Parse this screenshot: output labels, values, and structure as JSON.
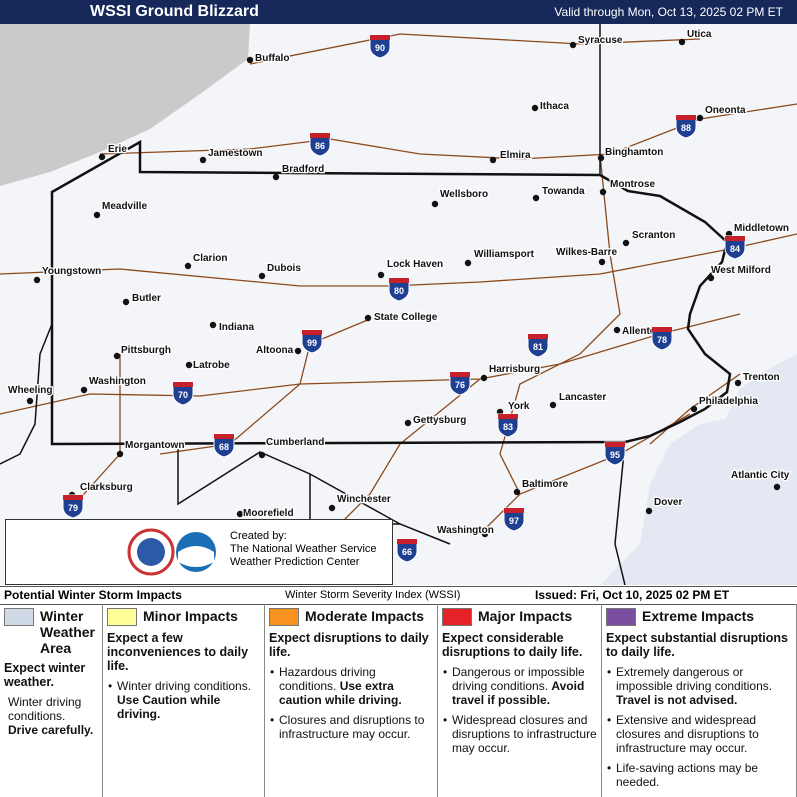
{
  "header": {
    "title": "WSSI Ground Blizzard",
    "valid": "Valid through Mon, Oct 13, 2025 02 PM ET"
  },
  "cities": [
    "Buffalo",
    "Syracuse",
    "Utica",
    "Ithaca",
    "Oneonta",
    "Erie",
    "Jamestown",
    "Bradford",
    "Elmira",
    "Binghamton",
    "Montrose",
    "Towanda",
    "Wellsboro",
    "Meadville",
    "Middletown",
    "Scranton",
    "Wilkes-Barre",
    "Williamsport",
    "Lock Haven",
    "Clarion",
    "Dubois",
    "Youngstown",
    "West Milford",
    "Butler",
    "State College",
    "Indiana",
    "Allentown",
    "Pittsburgh",
    "Altoona",
    "Latrobe",
    "Harrisburg",
    "Trenton",
    "Washington",
    "Lancaster",
    "Philadelphia",
    "York",
    "Gettysburg",
    "Morgantown",
    "Cumberland",
    "Atlantic City",
    "Clarksburg",
    "Baltimore",
    "Winchester",
    "Dover",
    "Moorefield",
    "Washington",
    "Wheeling"
  ],
  "interstates": [
    "90",
    "86",
    "88",
    "84",
    "80",
    "81",
    "78",
    "99",
    "76",
    "70",
    "83",
    "68",
    "95",
    "79",
    "97",
    "66"
  ],
  "credit": [
    "Created by:",
    "The National Weather Service",
    "Weather Prediction Center"
  ],
  "legend_bar": {
    "left": "Potential Winter Storm Impacts",
    "center": "Winter Storm Severity Index (WSSI)",
    "right": "Issued: Fri, Oct 10, 2025 02 PM ET"
  },
  "legend": [
    {
      "title": "Winter Weather Area",
      "color": "#cfdae6",
      "summary": "Expect winter weather.",
      "bullet": false,
      "items": [
        {
          "text": "Winter driving conditions.",
          "bold": "Drive carefully."
        }
      ]
    },
    {
      "title": "Minor Impacts",
      "color": "#ffff99",
      "summary": "Expect a few inconveniences to daily life.",
      "bullet": true,
      "items": [
        {
          "text": "Winter driving conditions.",
          "bold": "Use Caution while driving."
        }
      ]
    },
    {
      "title": "Moderate Impacts",
      "color": "#f7931e",
      "summary": "Expect disruptions to daily life.",
      "bullet": true,
      "items": [
        {
          "text": "Hazardous driving conditions.",
          "bold": "Use extra caution while driving."
        },
        {
          "text": "Closures and disruptions to infrastructure may occur."
        }
      ]
    },
    {
      "title": "Major Impacts",
      "color": "#e52228",
      "summary": "Expect considerable disruptions to daily life.",
      "bullet": true,
      "items": [
        {
          "text": "Dangerous or impossible driving conditions.",
          "bold": "Avoid travel if possible."
        },
        {
          "text": "Widespread closures and disruptions to infrastructure may occur."
        }
      ]
    },
    {
      "title": "Extreme Impacts",
      "color": "#7a4f9f",
      "summary": "Expect substantial disruptions to daily life.",
      "bullet": true,
      "items": [
        {
          "text": "Extremely dangerous or impossible driving conditions.",
          "bold": "Travel is not advised."
        },
        {
          "text": "Extensive and widespread closures and disruptions to infrastructure may occur."
        },
        {
          "text": "Life-saving actions may be needed."
        }
      ]
    }
  ]
}
